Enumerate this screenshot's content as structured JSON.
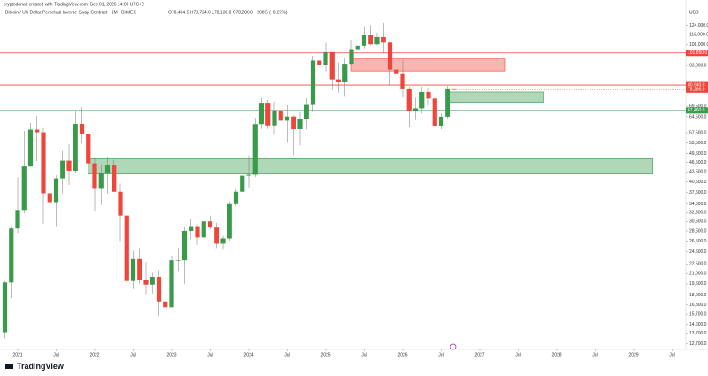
{
  "chart_data": {
    "type": "candlestick",
    "header": "cryptodonalt created with TradingView.com, Sep 01, 2026 14:09 UTC+2",
    "title": "Bitcoin / US Dollar Perpetual Inverse Swap Contract · 1M · BitMEX",
    "ohlc_text": "O78,494.5 H78,724.0 L78,138.0 C78,286.0 −208.5 (−0.27%)",
    "logo": "TradingView",
    "up_color": "#3a9a4c",
    "down_color": "#f0453a",
    "log_scale": true,
    "ylim": [
      12200,
      131000
    ],
    "yticks": [
      {
        "value": 124000,
        "label": "124,000.0"
      },
      {
        "value": 116000,
        "label": "116,000.0"
      },
      {
        "value": 108000,
        "label": "108,000.0"
      },
      {
        "value": 93000,
        "label": "93,000.0"
      },
      {
        "value": 80500,
        "label": "80,500.0"
      },
      {
        "value": 69500,
        "label": "69,500.0"
      },
      {
        "value": 64500,
        "label": "64,500.0"
      },
      {
        "value": 57500,
        "label": "57,500.0"
      },
      {
        "value": 53500,
        "label": "53,500.0"
      },
      {
        "value": 49500,
        "label": "49,500.0"
      },
      {
        "value": 46500,
        "label": "46,500.0"
      },
      {
        "value": 43500,
        "label": "43,500.0"
      },
      {
        "value": 40500,
        "label": "40,500.0"
      },
      {
        "value": 37500,
        "label": "37,500.0"
      },
      {
        "value": 34500,
        "label": "34,500.0"
      },
      {
        "value": 32500,
        "label": "32,500.0"
      },
      {
        "value": 30500,
        "label": "30,500.0"
      },
      {
        "value": 28500,
        "label": "28,500.0"
      },
      {
        "value": 26500,
        "label": "26,500.0"
      },
      {
        "value": 24500,
        "label": "24,500.0"
      },
      {
        "value": 22500,
        "label": "22,500.0"
      },
      {
        "value": 21000,
        "label": "21,000.0"
      },
      {
        "value": 19500,
        "label": "19,500.0"
      },
      {
        "value": 18000,
        "label": "18,000.0"
      },
      {
        "value": 16800,
        "label": "16,800.0"
      },
      {
        "value": 15700,
        "label": "15,700.0"
      },
      {
        "value": 14600,
        "label": "14,600.0"
      },
      {
        "value": 13700,
        "label": "13,700.0"
      },
      {
        "value": 12700,
        "label": "12,700.0"
      }
    ],
    "xticks": [
      {
        "value": "2021-01",
        "label": "2021"
      },
      {
        "value": "2021-07",
        "label": "Jul"
      },
      {
        "value": "2022-01",
        "label": "2022"
      },
      {
        "value": "2022-07",
        "label": "Jul"
      },
      {
        "value": "2023-01",
        "label": "2023"
      },
      {
        "value": "2023-07",
        "label": "Jul"
      },
      {
        "value": "2024-01",
        "label": "2024"
      },
      {
        "value": "2024-07",
        "label": "Jul"
      },
      {
        "value": "2025-01",
        "label": "2025"
      },
      {
        "value": "2025-07",
        "label": "Jul"
      },
      {
        "value": "2026-01",
        "label": "2026"
      },
      {
        "value": "2026-07",
        "label": "Jul"
      },
      {
        "value": "2027-01",
        "label": "2027"
      },
      {
        "value": "2027-07",
        "label": "Jul"
      },
      {
        "value": "2028-01",
        "label": "2028"
      },
      {
        "value": "2028-07",
        "label": "Jul"
      },
      {
        "value": "2029-01",
        "label": "2029"
      },
      {
        "value": "2029-07",
        "label": "Jul"
      }
    ],
    "x": [
      "2020-11",
      "2020-12",
      "2021-01",
      "2021-02",
      "2021-03",
      "2021-04",
      "2021-05",
      "2021-06",
      "2021-07",
      "2021-08",
      "2021-09",
      "2021-10",
      "2021-11",
      "2021-12",
      "2022-01",
      "2022-02",
      "2022-03",
      "2022-04",
      "2022-05",
      "2022-06",
      "2022-07",
      "2022-08",
      "2022-09",
      "2022-10",
      "2022-11",
      "2022-12",
      "2023-01",
      "2023-02",
      "2023-03",
      "2023-04",
      "2023-05",
      "2023-06",
      "2023-07",
      "2023-08",
      "2023-09",
      "2023-10",
      "2023-11",
      "2023-12",
      "2024-01",
      "2024-02",
      "2024-03",
      "2024-04",
      "2024-05",
      "2024-06",
      "2024-07",
      "2024-08",
      "2024-09",
      "2024-10",
      "2024-11",
      "2024-12",
      "2025-01",
      "2025-02",
      "2025-03",
      "2025-04",
      "2025-05",
      "2025-06",
      "2025-07",
      "2025-08",
      "2025-09",
      "2025-10",
      "2025-11",
      "2025-12",
      "2026-01",
      "2026-02",
      "2026-03",
      "2026-04",
      "2026-05",
      "2026-06",
      "2026-07",
      "2026-08",
      "2026-09"
    ],
    "ohlc": [
      [
        13800,
        19900,
        13200,
        19700
      ],
      [
        19700,
        29300,
        17600,
        29000
      ],
      [
        29000,
        41900,
        28100,
        33100
      ],
      [
        33100,
        58300,
        32300,
        45200
      ],
      [
        45200,
        61800,
        45000,
        58800
      ],
      [
        58800,
        64900,
        47000,
        57700
      ],
      [
        57700,
        59500,
        30000,
        37300
      ],
      [
        37300,
        41300,
        28800,
        35000
      ],
      [
        35000,
        42400,
        29300,
        41500
      ],
      [
        41500,
        50500,
        37300,
        47100
      ],
      [
        47100,
        52900,
        39600,
        43800
      ],
      [
        43800,
        67000,
        43300,
        61300
      ],
      [
        61300,
        69000,
        53300,
        57000
      ],
      [
        57000,
        59100,
        42000,
        46200
      ],
      [
        46200,
        48000,
        32900,
        38500
      ],
      [
        38500,
        45800,
        34300,
        43200
      ],
      [
        43200,
        48200,
        37200,
        45500
      ],
      [
        45500,
        47400,
        37600,
        37700
      ],
      [
        37700,
        40000,
        26500,
        31800
      ],
      [
        31800,
        31900,
        17600,
        19900
      ],
      [
        19900,
        24700,
        18800,
        23300
      ],
      [
        23300,
        25200,
        19500,
        20000
      ],
      [
        20000,
        22800,
        18100,
        19400
      ],
      [
        19400,
        21100,
        18200,
        20500
      ],
      [
        20500,
        21500,
        15500,
        17200
      ],
      [
        17200,
        18400,
        16300,
        16500
      ],
      [
        16500,
        23900,
        16500,
        23100
      ],
      [
        23100,
        25300,
        21400,
        23100
      ],
      [
        23100,
        29200,
        19500,
        28500
      ],
      [
        28500,
        31000,
        26900,
        29300
      ],
      [
        29300,
        29800,
        25800,
        27200
      ],
      [
        27200,
        31400,
        24800,
        30500
      ],
      [
        30500,
        31800,
        28900,
        29200
      ],
      [
        29200,
        30200,
        25200,
        26000
      ],
      [
        26000,
        27500,
        24900,
        27000
      ],
      [
        27000,
        35200,
        26600,
        34500
      ],
      [
        34500,
        38400,
        34100,
        37700
      ],
      [
        37700,
        44700,
        37600,
        42300
      ],
      [
        42300,
        48900,
        38600,
        42600
      ],
      [
        42600,
        64000,
        41900,
        61200
      ],
      [
        61200,
        73800,
        59100,
        71300
      ],
      [
        71300,
        72800,
        59100,
        60600
      ],
      [
        60600,
        71900,
        56600,
        67500
      ],
      [
        67500,
        72000,
        58500,
        62700
      ],
      [
        62700,
        70000,
        53500,
        64600
      ],
      [
        64600,
        65100,
        49000,
        59000
      ],
      [
        59000,
        66500,
        52600,
        63300
      ],
      [
        63300,
        73600,
        58900,
        70200
      ],
      [
        70200,
        99800,
        66800,
        96400
      ],
      [
        96400,
        108300,
        90500,
        93400
      ],
      [
        93400,
        109500,
        89200,
        102400
      ],
      [
        102400,
        102600,
        78200,
        84300
      ],
      [
        84300,
        95000,
        76600,
        82500
      ],
      [
        82500,
        97900,
        74400,
        94200
      ],
      [
        94200,
        111900,
        93400,
        104600
      ],
      [
        104600,
        110600,
        98200,
        107100
      ],
      [
        107100,
        123200,
        105100,
        115700
      ],
      [
        115700,
        124400,
        107300,
        108200
      ],
      [
        108200,
        117900,
        107200,
        114000
      ],
      [
        114000,
        126200,
        102000,
        109500
      ],
      [
        109500,
        110600,
        80600,
        90400
      ],
      [
        90400,
        94600,
        84400,
        87500
      ],
      [
        87500,
        97000,
        74000,
        78500
      ],
      [
        78500,
        80000,
        60000,
        67000
      ],
      [
        67000,
        74000,
        63000,
        68500
      ],
      [
        68500,
        80000,
        66000,
        77000
      ],
      [
        77000,
        79500,
        70000,
        73500
      ],
      [
        73500,
        74500,
        58000,
        60500
      ],
      [
        60500,
        66000,
        59000,
        64500
      ],
      [
        64500,
        80500,
        63500,
        78494.5
      ],
      [
        78494.5,
        78724,
        78138,
        78286
      ]
    ],
    "levels": [
      {
        "value": 101850,
        "label": "101,850.0",
        "color": "#f0453a"
      },
      {
        "value": 80940,
        "label": "80,940.0",
        "color": "#f0453a"
      },
      {
        "value": 67460,
        "label": "67,460.0",
        "color": "#3a9a4c"
      }
    ],
    "price_tag": {
      "value": 78286,
      "label": "78,286.0",
      "color": "#f0453a"
    },
    "zones": [
      {
        "x0": "2025-05",
        "x1": "2027-05",
        "y0": 89500,
        "y1": 97500,
        "color": "#f0453a"
      },
      {
        "x0": "2026-08",
        "x1": "2027-11",
        "y0": 71500,
        "y1": 77000,
        "color": "#3a9a4c"
      },
      {
        "x0": "2021-12",
        "x1": "2029-04",
        "y0": 42800,
        "y1": 47800,
        "color": "#3a9a4c"
      }
    ]
  }
}
